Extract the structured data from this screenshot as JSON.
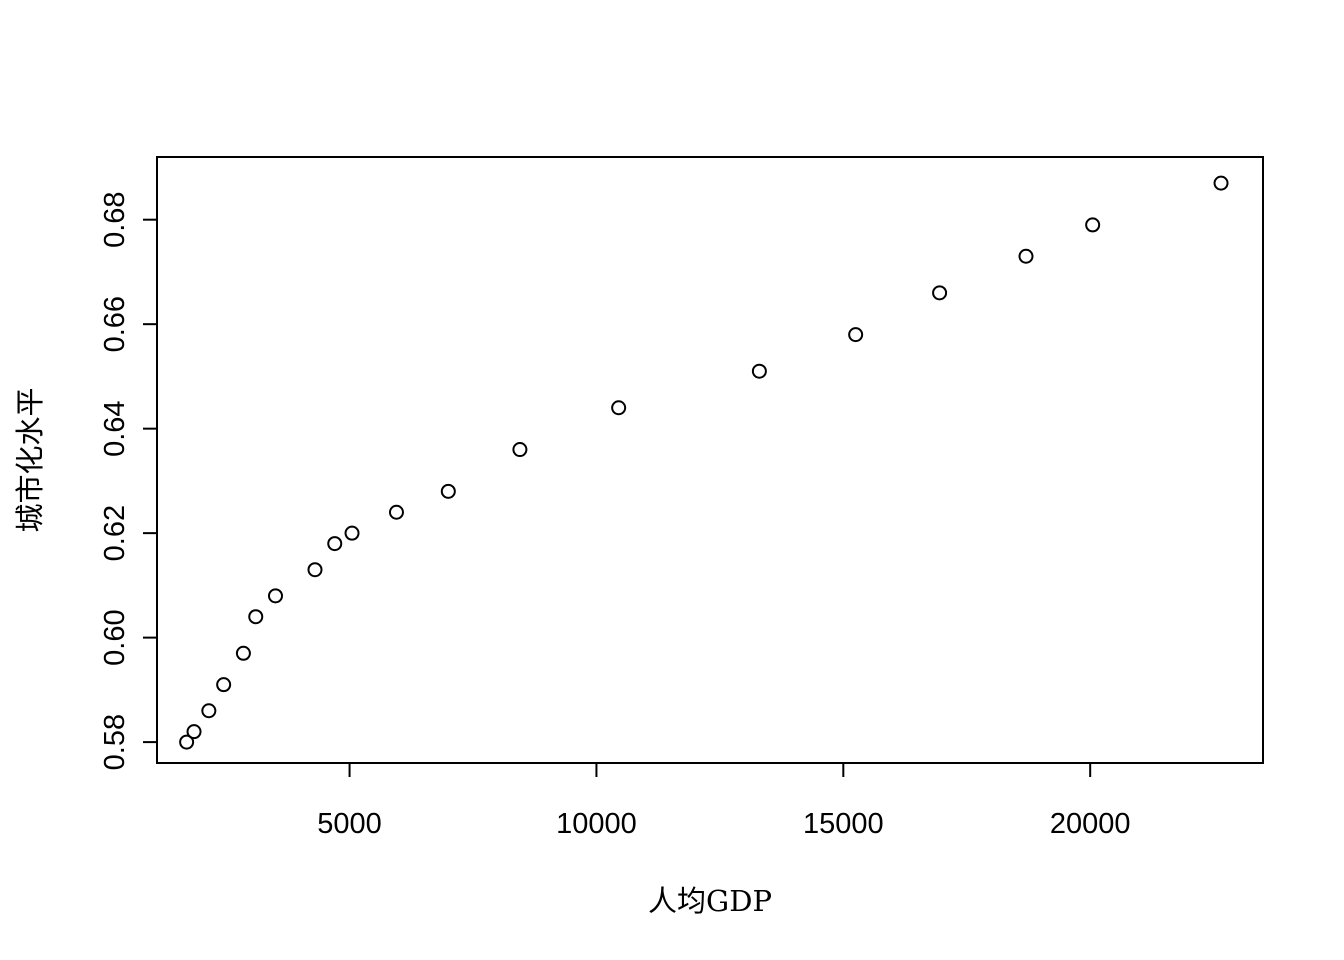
{
  "chart_data": {
    "type": "scatter",
    "title": "",
    "xlabel": "人均GDP",
    "ylabel": "城市化水平",
    "xlim": [
      1100,
      23500
    ],
    "ylim": [
      0.576,
      0.692
    ],
    "x_ticks": [
      5000,
      10000,
      15000,
      20000
    ],
    "x_tick_labels": [
      "5000",
      "10000",
      "15000",
      "20000"
    ],
    "y_ticks": [
      0.58,
      0.6,
      0.62,
      0.64,
      0.66,
      0.68
    ],
    "y_tick_labels": [
      "0.58",
      "0.60",
      "0.62",
      "0.64",
      "0.66",
      "0.68"
    ],
    "grid": false,
    "legend": "none",
    "marker": "open-circle",
    "colors": {
      "points": "#000000",
      "axes": "#000000"
    },
    "points": [
      {
        "x": 1700,
        "y": 0.58
      },
      {
        "x": 1850,
        "y": 0.582
      },
      {
        "x": 2150,
        "y": 0.586
      },
      {
        "x": 2450,
        "y": 0.591
      },
      {
        "x": 2850,
        "y": 0.597
      },
      {
        "x": 3100,
        "y": 0.604
      },
      {
        "x": 3500,
        "y": 0.608
      },
      {
        "x": 4300,
        "y": 0.613
      },
      {
        "x": 4700,
        "y": 0.618
      },
      {
        "x": 5050,
        "y": 0.62
      },
      {
        "x": 5950,
        "y": 0.624
      },
      {
        "x": 7000,
        "y": 0.628
      },
      {
        "x": 8450,
        "y": 0.636
      },
      {
        "x": 10450,
        "y": 0.644
      },
      {
        "x": 13300,
        "y": 0.651
      },
      {
        "x": 15250,
        "y": 0.658
      },
      {
        "x": 16950,
        "y": 0.666
      },
      {
        "x": 18700,
        "y": 0.673
      },
      {
        "x": 20050,
        "y": 0.679
      },
      {
        "x": 22650,
        "y": 0.687
      }
    ]
  }
}
